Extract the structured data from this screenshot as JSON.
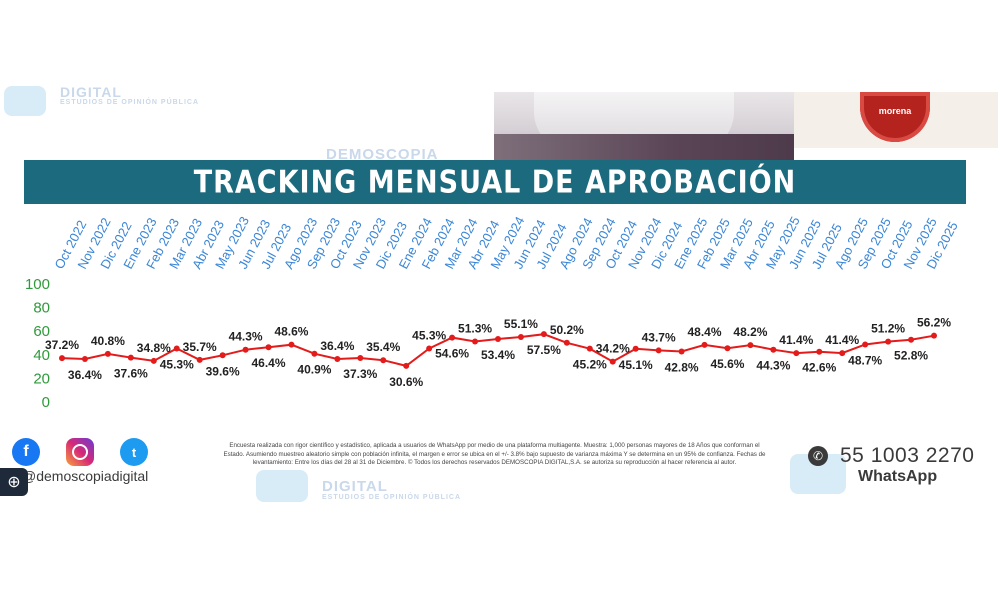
{
  "watermark": {
    "brand_top": "DIGITAL",
    "tagline_top": "ESTUDIOS DE OPINIÓN PÚBLICA",
    "brand_mid": "DEMOSCOPIA",
    "brand_bottom": "DIGITAL",
    "tagline_bottom": "ESTUDIOS DE OPINIÓN PÚBLICA"
  },
  "party_logo": {
    "label": "morena"
  },
  "header": {
    "title": "TRACKING MENSUAL DE APROBACIÓN"
  },
  "chart_data": {
    "type": "line",
    "title": "TRACKING MENSUAL DE APROBACIÓN",
    "categories": [
      "Oct 2022",
      "Nov 2022",
      "Dic 2022",
      "Ene 2023",
      "Feb 2023",
      "Mar 2023",
      "Abr 2023",
      "May 2023",
      "Jun 2023",
      "Jul 2023",
      "Ago 2023",
      "Sep 2023",
      "Oct 2023",
      "Nov 2023",
      "Dic 2023",
      "Ene 2024",
      "Feb 2024",
      "Mar 2024",
      "Abr 2024",
      "May 2024",
      "Jun 2024",
      "Jul 2024",
      "Ago 2024",
      "Sep 2024",
      "Oct 2024",
      "Nov 2024",
      "Dic 2024",
      "Ene 2025",
      "Feb 2025",
      "Mar 2025",
      "Abr 2025",
      "May 2025",
      "Jun 2025",
      "Jul 2025",
      "Ago 2025",
      "Sep 2025",
      "Oct 2025",
      "Nov 2025",
      "Dic 2025"
    ],
    "values": [
      37.2,
      36.4,
      40.8,
      37.6,
      34.8,
      45.3,
      35.7,
      39.6,
      44.3,
      46.4,
      48.6,
      40.9,
      36.4,
      37.3,
      35.4,
      30.6,
      45.3,
      54.6,
      51.3,
      53.4,
      55.1,
      57.5,
      50.2,
      45.2,
      34.2,
      45.1,
      43.7,
      42.8,
      48.4,
      45.6,
      48.2,
      44.3,
      41.4,
      42.6,
      41.4,
      48.7,
      51.2,
      52.8,
      56.2
    ],
    "labels": [
      "37.2%",
      "36.4%",
      "40.8%",
      "37.6%",
      "34.8%",
      "45.3%",
      "35.7%",
      "39.6%",
      "44.3%",
      "46.4%",
      "48.6%",
      "40.9%",
      "36.4%",
      "37.3%",
      "35.4%",
      "30.6%",
      "45.3%",
      "54.6%",
      "51.3%",
      "53.4%",
      "55.1%",
      "57.5%",
      "50.2%",
      "45.2%",
      "34.2%",
      "45.1%",
      "43.7%",
      "42.8%",
      "48.4%",
      "45.6%",
      "48.2%",
      "44.3%",
      "41.4%",
      "42.6%",
      "41.4%",
      "48.7%",
      "51.2%",
      "52.8%",
      "56.2%"
    ],
    "label_position": [
      "above",
      "below",
      "above",
      "below",
      "above",
      "below",
      "above",
      "below",
      "above",
      "below",
      "above",
      "below",
      "above",
      "below",
      "above",
      "below",
      "above",
      "below",
      "above",
      "below",
      "above",
      "below",
      "above",
      "below",
      "above",
      "below",
      "above",
      "below",
      "above",
      "below",
      "above",
      "below",
      "above",
      "below",
      "above",
      "below",
      "above",
      "below",
      "above"
    ],
    "yticks": [
      "100",
      "80",
      "60",
      "40",
      "20",
      "0"
    ],
    "ylim": [
      0,
      100
    ],
    "xlabel": "",
    "ylabel": "",
    "grid": false,
    "line_color": "#e31b1b",
    "axis_label_color": "#3a86d6",
    "ytick_color": "#2e9a3a"
  },
  "footer": {
    "handle": "@demoscopiadigital",
    "disclaimer": "Encuesta realizada con rigor científico y estadístico, aplicada a usuarios de WhatsApp por medio de una plataforma multiagente. Muestra: 1,000 personas mayores de 18 Años que conforman el Estado. Asumiendo muestreo aleatorio simple con población infinita, el margen e error se ubica en el  +/- 3.8% bajo supuesto de varianza máxima Y se determina en un 95% de confianza. Fechas de levantamiento: Entre los días del 28 al 31 de Diciembre. © Todos los derechos reservados DEMOSCOPIA DIGITAL,S.A. se autoriza su reproducción al hacer referencia al autor.",
    "phone": "55 1003 2270",
    "whatsapp_label": "WhatsApp",
    "icons": {
      "facebook": "facebook-icon",
      "instagram": "instagram-icon",
      "twitter": "twitter-icon",
      "whatsapp": "whatsapp-icon",
      "accessibility": "accessibility-icon"
    },
    "colors": {
      "facebook": "#1877f2",
      "instagram": "#d62976",
      "twitter": "#1d9bf0"
    }
  }
}
